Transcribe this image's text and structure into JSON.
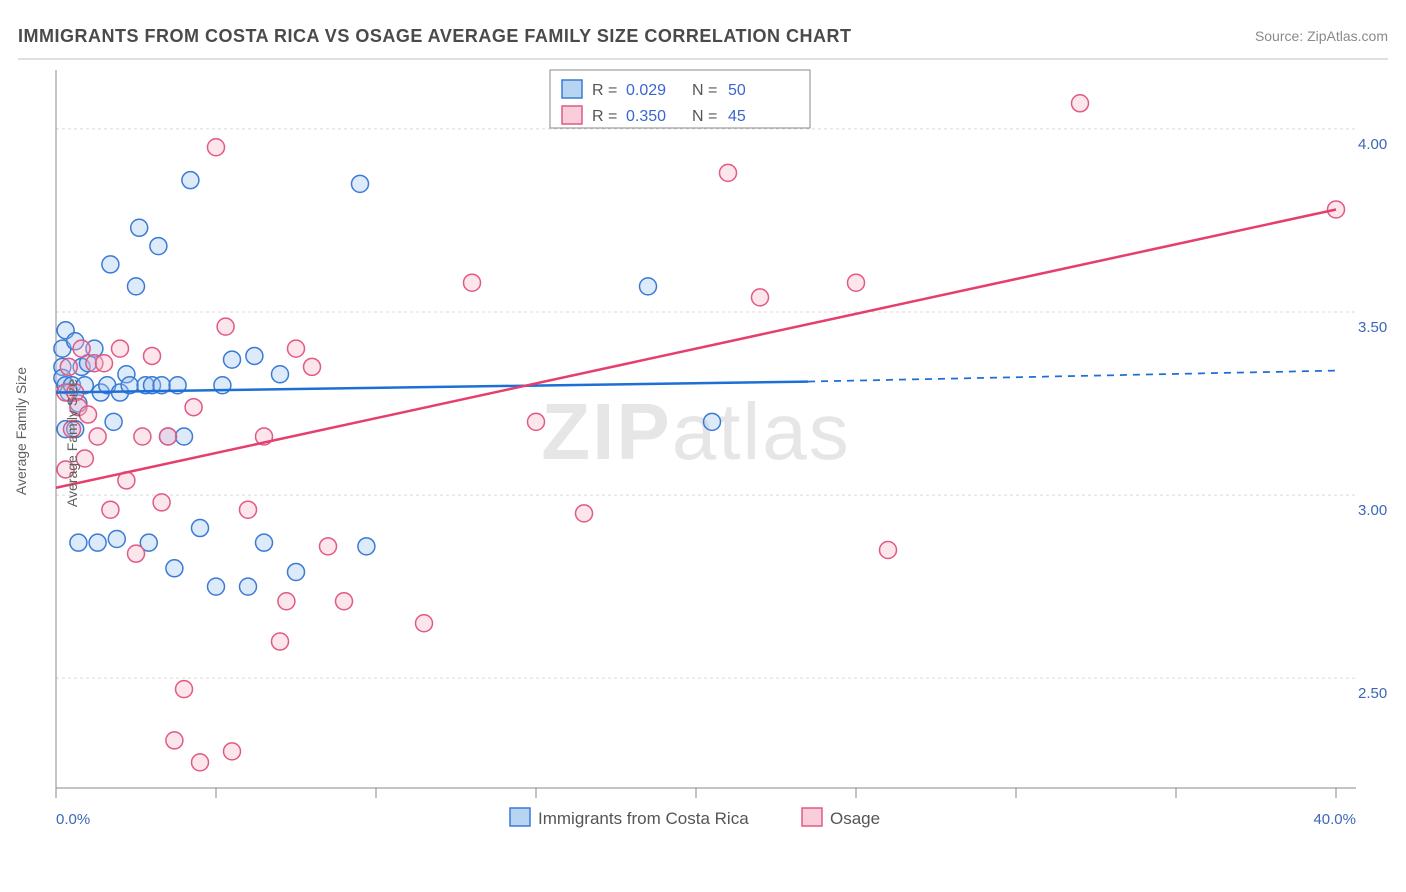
{
  "header": {
    "title": "IMMIGRANTS FROM COSTA RICA VS OSAGE AVERAGE FAMILY SIZE CORRELATION CHART",
    "source": "Source: ZipAtlas.com"
  },
  "watermark": {
    "part1": "ZIP",
    "part2": "atlas"
  },
  "chart": {
    "type": "scatter",
    "background_color": "#ffffff",
    "grid_color": "#d9d9d9",
    "axis_line_color": "#888888",
    "tick_label_color": "#3b68b5",
    "axis_title_color": "#606060",
    "fontsize_tick": 15,
    "fontsize_axis_title": 14,
    "x_axis": {
      "min": 0,
      "max": 40,
      "tick_step": 5,
      "label_left": "0.0%",
      "label_right": "40.0%",
      "title": ""
    },
    "y_axis": {
      "min": 2.2,
      "max": 4.15,
      "ticks": [
        2.5,
        3.0,
        3.5,
        4.0
      ],
      "title": "Average Family Size"
    },
    "marker_radius": 8.5,
    "marker_stroke_width": 1.5,
    "marker_fill_opacity": 0.35,
    "series": [
      {
        "id": "costa_rica",
        "legend_label": "Immigrants from Costa Rica",
        "stroke": "#3a7bd5",
        "fill": "#9ec2ee",
        "R": "0.029",
        "N": "50",
        "trend": {
          "x1": 0,
          "y1": 3.28,
          "x2": 23.5,
          "y2": 3.31,
          "dash_x2": 40,
          "dash_y2": 3.34,
          "color": "#1d6fd6",
          "width": 2.5
        },
        "points": [
          [
            0.2,
            3.4
          ],
          [
            0.2,
            3.35
          ],
          [
            0.2,
            3.32
          ],
          [
            0.3,
            3.45
          ],
          [
            0.3,
            3.18
          ],
          [
            0.3,
            3.3
          ],
          [
            0.4,
            3.28
          ],
          [
            0.5,
            3.3
          ],
          [
            0.6,
            3.42
          ],
          [
            0.6,
            3.18
          ],
          [
            0.7,
            2.87
          ],
          [
            0.7,
            3.25
          ],
          [
            0.8,
            3.35
          ],
          [
            0.9,
            3.3
          ],
          [
            1.0,
            3.36
          ],
          [
            1.2,
            3.4
          ],
          [
            1.3,
            2.87
          ],
          [
            1.4,
            3.28
          ],
          [
            1.6,
            3.3
          ],
          [
            1.7,
            3.63
          ],
          [
            1.8,
            3.2
          ],
          [
            1.9,
            2.88
          ],
          [
            2.0,
            3.28
          ],
          [
            2.2,
            3.33
          ],
          [
            2.3,
            3.3
          ],
          [
            2.5,
            3.57
          ],
          [
            2.6,
            3.73
          ],
          [
            2.8,
            3.3
          ],
          [
            2.9,
            2.87
          ],
          [
            3.0,
            3.3
          ],
          [
            3.2,
            3.68
          ],
          [
            3.3,
            3.3
          ],
          [
            3.5,
            3.16
          ],
          [
            3.7,
            2.8
          ],
          [
            3.8,
            3.3
          ],
          [
            4.0,
            3.16
          ],
          [
            4.2,
            3.86
          ],
          [
            4.5,
            2.91
          ],
          [
            5.0,
            2.75
          ],
          [
            5.2,
            3.3
          ],
          [
            5.5,
            3.37
          ],
          [
            6.0,
            2.75
          ],
          [
            6.2,
            3.38
          ],
          [
            6.5,
            2.87
          ],
          [
            7.0,
            3.33
          ],
          [
            7.5,
            2.79
          ],
          [
            9.5,
            3.85
          ],
          [
            9.7,
            2.86
          ],
          [
            18.5,
            3.57
          ],
          [
            20.5,
            3.2
          ]
        ]
      },
      {
        "id": "osage",
        "legend_label": "Osage",
        "stroke": "#e05a84",
        "fill": "#f6b6c8",
        "R": "0.350",
        "N": "45",
        "trend": {
          "x1": 0,
          "y1": 3.02,
          "x2": 40,
          "y2": 3.78,
          "color": "#e63e6d",
          "width": 2.5
        },
        "points": [
          [
            0.3,
            3.28
          ],
          [
            0.3,
            3.07
          ],
          [
            0.4,
            3.35
          ],
          [
            0.5,
            3.18
          ],
          [
            0.6,
            3.28
          ],
          [
            0.7,
            3.24
          ],
          [
            0.8,
            3.4
          ],
          [
            0.9,
            3.1
          ],
          [
            1.0,
            3.22
          ],
          [
            1.2,
            3.36
          ],
          [
            1.3,
            3.16
          ],
          [
            1.5,
            3.36
          ],
          [
            1.7,
            2.96
          ],
          [
            2.0,
            3.4
          ],
          [
            2.2,
            3.04
          ],
          [
            2.5,
            2.84
          ],
          [
            2.7,
            3.16
          ],
          [
            3.0,
            3.38
          ],
          [
            3.3,
            2.98
          ],
          [
            3.5,
            3.16
          ],
          [
            3.7,
            2.33
          ],
          [
            4.0,
            2.47
          ],
          [
            4.3,
            3.24
          ],
          [
            4.5,
            2.27
          ],
          [
            5.0,
            3.95
          ],
          [
            5.3,
            3.46
          ],
          [
            5.5,
            2.3
          ],
          [
            6.0,
            2.96
          ],
          [
            6.5,
            3.16
          ],
          [
            7.0,
            2.6
          ],
          [
            7.2,
            2.71
          ],
          [
            7.5,
            3.4
          ],
          [
            8.0,
            3.35
          ],
          [
            8.5,
            2.86
          ],
          [
            9.0,
            2.71
          ],
          [
            11.5,
            2.65
          ],
          [
            13.0,
            3.58
          ],
          [
            15.0,
            3.2
          ],
          [
            16.5,
            2.95
          ],
          [
            21.0,
            3.88
          ],
          [
            22.0,
            3.54
          ],
          [
            25.0,
            3.58
          ],
          [
            26.0,
            2.85
          ],
          [
            32.0,
            4.07
          ],
          [
            40.0,
            3.78
          ]
        ]
      }
    ]
  },
  "legend_top": {
    "box_border": "#888888",
    "rows": [
      {
        "swatch_stroke": "#3a7bd5",
        "swatch_fill": "#b7d4f3",
        "labels": [
          "R =",
          "0.029",
          "N =",
          "50"
        ]
      },
      {
        "swatch_stroke": "#e05a84",
        "swatch_fill": "#f9cdd9",
        "labels": [
          "R =",
          "0.350",
          "N =",
          "45"
        ]
      }
    ]
  },
  "legend_bottom": {
    "items": [
      {
        "swatch_stroke": "#3a7bd5",
        "swatch_fill": "#b7d4f3",
        "label": "Immigrants from Costa Rica"
      },
      {
        "swatch_stroke": "#e05a84",
        "swatch_fill": "#f9cdd9",
        "label": "Osage"
      }
    ]
  }
}
